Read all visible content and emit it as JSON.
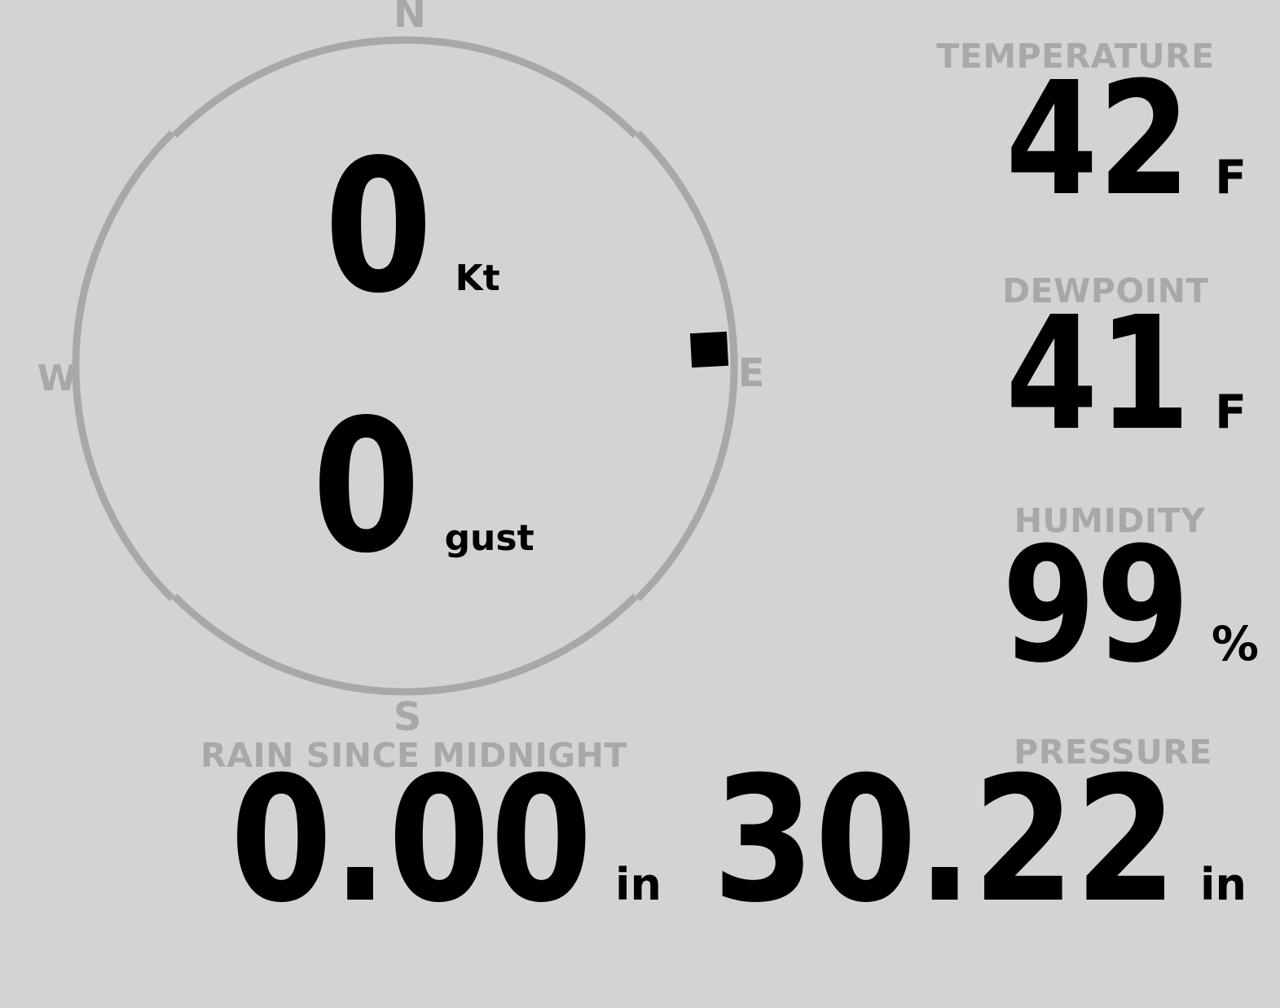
{
  "theme": {
    "background": "#d3d3d3",
    "muted": "#a8a8a8",
    "foreground": "#000000"
  },
  "wind_gauge": {
    "speed": {
      "value": "0",
      "unit": "Kt"
    },
    "gust": {
      "value": "0",
      "unit": "gust"
    },
    "direction_bearing_degrees": 87,
    "cardinals": {
      "north": "N",
      "east": "E",
      "south": "S",
      "west": "W"
    }
  },
  "metrics": {
    "temperature": {
      "label": "TEMPERATURE",
      "value": "42",
      "unit": "F"
    },
    "dewpoint": {
      "label": "DEWPOINT",
      "value": "41",
      "unit": "F"
    },
    "humidity": {
      "label": "HUMIDITY",
      "value": "99",
      "unit": "%"
    },
    "pressure": {
      "label": "PRESSURE",
      "value": "30.22",
      "unit": "in"
    },
    "rain_since_midnight": {
      "label": "RAIN SINCE MIDNIGHT",
      "value": "0.00",
      "unit": "in"
    }
  }
}
